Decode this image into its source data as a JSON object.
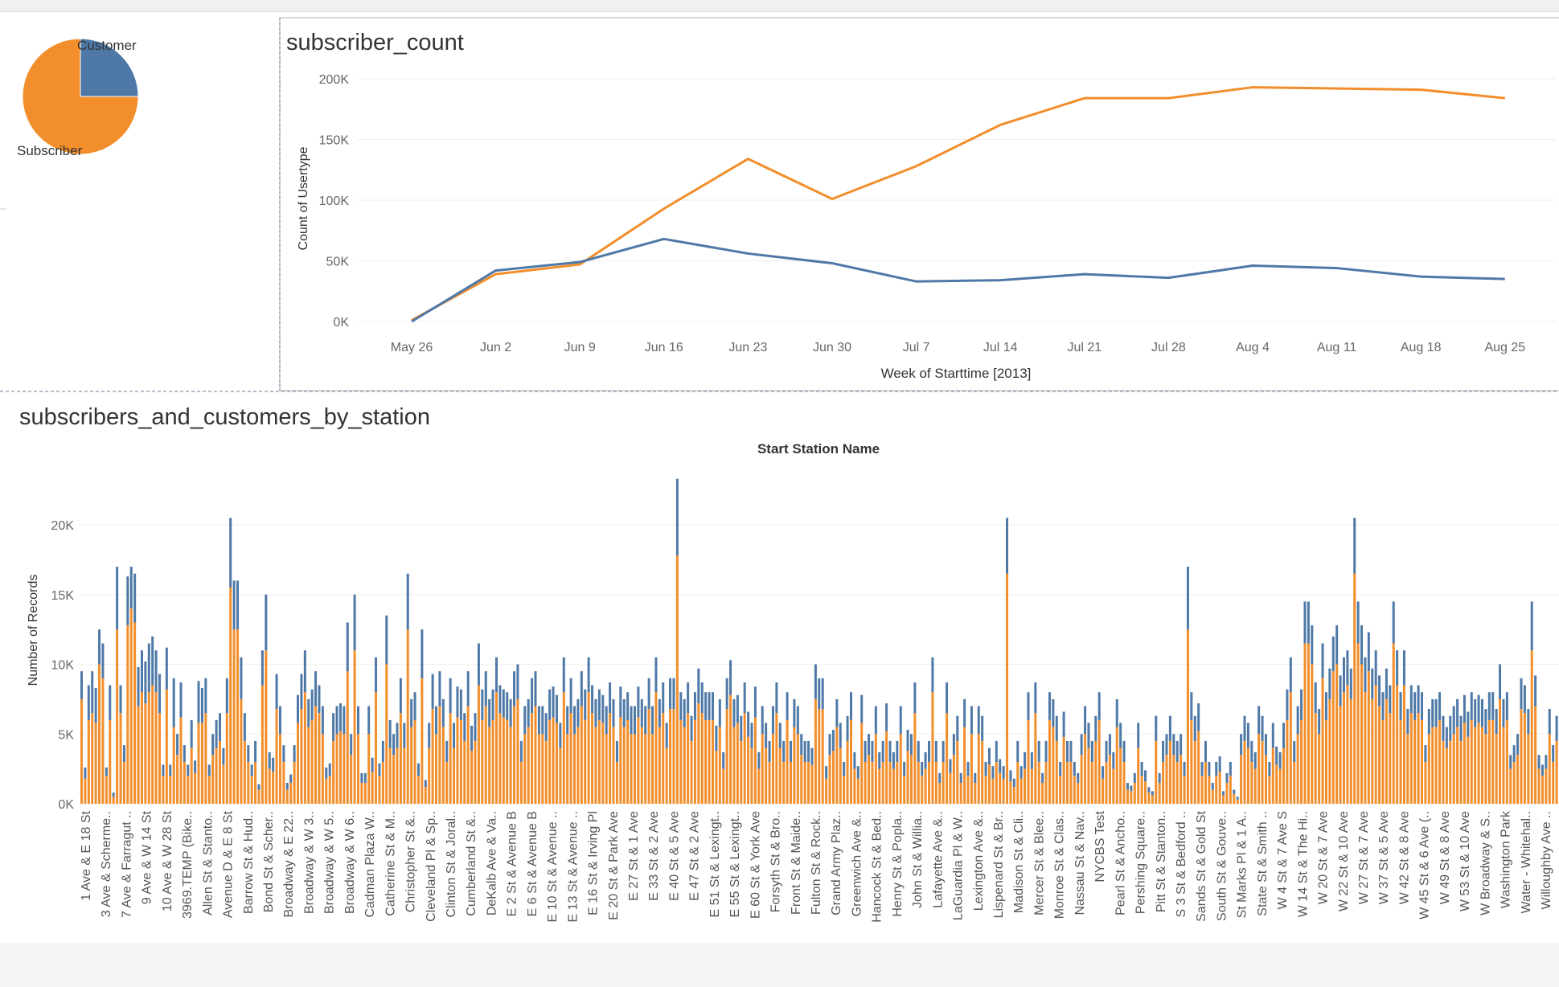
{
  "pie": {
    "slices": [
      {
        "label": "Customer",
        "fraction": 0.25,
        "color": "#4e79a7"
      },
      {
        "label": "Subscriber",
        "fraction": 0.75,
        "color": "#f28e2b"
      }
    ]
  },
  "line_chart": {
    "title": "subscriber_count",
    "xlabel": "Week of Starttime [2013]",
    "ylabel": "Count of Usertype",
    "categories": [
      "May 26",
      "Jun 2",
      "Jun 9",
      "Jun 16",
      "Jun 23",
      "Jun 30",
      "Jul 7",
      "Jul 14",
      "Jul 21",
      "Jul 28",
      "Aug 4",
      "Aug 11",
      "Aug 18",
      "Aug 25"
    ],
    "yticks": [
      "0K",
      "50K",
      "100K",
      "150K",
      "200K"
    ],
    "ylim": [
      0,
      200000
    ],
    "series": [
      {
        "color": "#f28e2b",
        "values": [
          1000,
          39000,
          47000,
          93000,
          134000,
          101000,
          128000,
          162000,
          184000,
          184000,
          193000,
          192000,
          191000,
          184000
        ]
      },
      {
        "color": "#4e79a7",
        "values": [
          0,
          42000,
          49000,
          68000,
          56000,
          48000,
          33000,
          34000,
          39000,
          36000,
          46000,
          44000,
          37000,
          35000
        ]
      }
    ]
  },
  "bar_chart": {
    "title": "subscribers_and_customers_by_station",
    "column_header": "Start Station Name",
    "ylabel": "Number of Records",
    "yticks": [
      "0K",
      "5K",
      "10K",
      "15K",
      "20K"
    ],
    "ylim": [
      0,
      25000
    ],
    "colors": {
      "subscriber": "#f28e2b",
      "customer": "#4e79a7"
    },
    "labels": [
      "1 Ave & E 18 St",
      "3 Ave & Scherme..",
      "7 Ave & Farragut ..",
      "9 Ave & W 14 St",
      "10 Ave & W 28 St",
      "3969.TEMP (Bike..",
      "Allen St & Stanto..",
      "Avenue D & E 8 St",
      "Barrow St & Hud..",
      "Bond St & Scher..",
      "Broadway & E 22..",
      "Broadway & W 3..",
      "Broadway & W 5..",
      "Broadway & W 6..",
      "Cadman Plaza W..",
      "Catherine St & M..",
      "Christopher St &..",
      "Cleveland Pl & Sp..",
      "Clinton St & Joral..",
      "Cumberland St &..",
      "DeKalb Ave & Va..",
      "E 2 St & Avenue B",
      "E 6 St & Avenue B",
      "E 10 St & Avenue ..",
      "E 13 St & Avenue ..",
      "E 16 St & Irving Pl",
      "E 20 St & Park Ave",
      "E 27 St & 1 Ave",
      "E 33 St & 2 Ave",
      "E 40 St & 5 Ave",
      "E 47 St & 2 Ave",
      "E 51 St & Lexingt..",
      "E 55 St & Lexingt..",
      "E 60 St & York Ave",
      "Forsyth St & Bro..",
      "Front St & Maide..",
      "Fulton St & Rock..",
      "Grand Army Plaz..",
      "Greenwich Ave &..",
      "Hancock St & Bed..",
      "Henry St & Popla..",
      "John St & Willia..",
      "Lafayette Ave &..",
      "LaGuardia Pl & W..",
      "Lexington Ave &..",
      "Lispenard St & Br..",
      "Madison St & Cli..",
      "Mercer St & Blee..",
      "Monroe St & Clas..",
      "Nassau St & Nav..",
      "NYCBS Test",
      "Pearl St & Ancho..",
      "Pershing Square..",
      "Pitt St & Stanton..",
      "S 3 St & Bedford ..",
      "Sands St & Gold St",
      "South St & Gouve..",
      "St Marks Pl & 1 A..",
      "State St & Smith ..",
      "W 4 St & 7 Ave S",
      "W 14 St & The Hi..",
      "W 20 St & 7 Ave",
      "W 22 St & 10 Ave",
      "W 27 St & 7 Ave",
      "W 37 St & 5 Ave",
      "W 42 St & 8 Ave",
      "W 45 St & 6 Ave (..",
      "W 49 St & 8 Ave",
      "W 53 St & 10 Ave",
      "W Broadway & S..",
      "Washington Park",
      "Water - Whitehal..",
      "Willoughby Ave .."
    ],
    "subscriber": [
      7500,
      1800,
      6000,
      6500,
      5800,
      10000,
      9000,
      2000,
      6000,
      500,
      12500,
      6500,
      3000,
      12800,
      14000,
      13000,
      7000,
      8000,
      7200,
      8000,
      8500,
      8000,
      6500,
      2000,
      8200,
      2000,
      5500,
      3500,
      6200,
      3000,
      2000,
      4000,
      2200,
      5800,
      5800,
      6500,
      2000,
      3500,
      4000,
      4500,
      2800,
      6500,
      15500,
      12500,
      12500,
      7500,
      4500,
      3000,
      2000,
      3000,
      1000,
      8500,
      11000,
      2500,
      2300,
      6800,
      5000,
      3000,
      1000,
      1500,
      3000,
      5800,
      6800,
      8000,
      5500,
      6000,
      7000,
      6500,
      5000,
      1800,
      2000,
      4500,
      5000,
      5200,
      5000,
      9500,
      3500,
      11000,
      5000,
      1500,
      1500,
      5000,
      2300,
      8000,
      2000,
      3000,
      10000,
      4000,
      3500,
      4000,
      6500,
      4000,
      12500,
      5500,
      6000,
      2000,
      9000,
      1200,
      4000,
      6800,
      5000,
      7000,
      5500,
      3000,
      6500,
      4000,
      6200,
      6000,
      4500,
      7000,
      3800,
      4500,
      8500,
      6000,
      7000,
      5500,
      6000,
      8000,
      6500,
      6200,
      6000,
      5500,
      7000,
      7500,
      3000,
      5000,
      5500,
      6500,
      7000,
      5000,
      5000,
      4500,
      6000,
      6200,
      5800,
      4000,
      8000,
      5000,
      6500,
      5000,
      5500,
      7000,
      6000,
      8000,
      6500,
      5500,
      6000,
      5800,
      5000,
      6500,
      5500,
      3000,
      6200,
      5500,
      6000,
      5000,
      5000,
      6200,
      5500,
      5000,
      6800,
      5000,
      8000,
      5500,
      6500,
      4000,
      6800,
      6800,
      17800,
      6000,
      5500,
      6500,
      4500,
      6000,
      7200,
      6500,
      6000,
      6000,
      6000,
      3800,
      5500,
      2500,
      6800,
      7800,
      5500,
      5800,
      4500,
      6500,
      4800,
      4000,
      6200,
      2500,
      5000,
      4000,
      3000,
      5000,
      6500,
      4000,
      3000,
      6000,
      3000,
      5500,
      5000,
      3500,
      3000,
      3000,
      2800,
      7500,
      6800,
      6800,
      1800,
      3500,
      3800,
      5500,
      4000,
      2000,
      4500,
      6000,
      2500,
      1800,
      5800,
      3000,
      3500,
      3000,
      5000,
      2500,
      3000,
      5200,
      3000,
      2500,
      3000,
      5000,
      2000,
      3800,
      3500,
      6500,
      3000,
      2000,
      2500,
      3000,
      8000,
      3000,
      1500,
      3000,
      6500,
      2200,
      3500,
      4500,
      1500,
      5500,
      2000,
      5000,
      1500,
      5000,
      4500,
      2000,
      2800,
      1800,
      3000,
      2200,
      1800,
      16500,
      1600,
      1200,
      3000,
      1800,
      2500,
      6000,
      2500,
      6500,
      3000,
      1500,
      3000,
      6000,
      5500,
      4500,
      2000,
      4800,
      3000,
      3000,
      2000,
      1500,
      3500,
      5000,
      4000,
      3000,
      4500,
      6000,
      1800,
      3000,
      3500,
      2500,
      5500,
      4000,
      3000,
      1000,
      900,
      1500,
      4000,
      2000,
      1600,
      800,
      600,
      4500,
      1500,
      3000,
      3500,
      4500,
      3500,
      3000,
      3500,
      2000,
      12500,
      6000,
      4500,
      5200,
      2000,
      3000,
      2000,
      1000,
      2000,
      2300,
      600,
      1500,
      2000,
      700,
      300,
      3500,
      4500,
      4000,
      3000,
      2500,
      5000,
      4500,
      3500,
      2000,
      4000,
      2800,
      2500,
      4000,
      6000,
      8000,
      3000,
      5000,
      6000,
      11500,
      11500,
      10000,
      6500,
      5000,
      9000,
      6000,
      7500,
      9500,
      10000,
      7000,
      8000,
      8500,
      7500,
      16500,
      11500,
      10000,
      8000,
      9500,
      7500,
      8500,
      7000,
      6000,
      7500,
      6500,
      11500,
      8500,
      6000,
      8500,
      5000,
      6500,
      6000,
      6500,
      6000,
      3000,
      5000,
      5500,
      5500,
      6000,
      4500,
      4000,
      4500,
      5000,
      5500,
      4500,
      5800,
      4800,
      6000,
      5500,
      5800,
      5500,
      5000,
      6000,
      6000,
      5000,
      7500,
      5500,
      6000,
      2500,
      3000,
      3500,
      6800,
      6500,
      5000,
      11000,
      7000,
      2500,
      2000,
      2500,
      5000,
      3000,
      4500
    ],
    "customer": [
      2000,
      800,
      2500,
      3000,
      2500,
      2500,
      2500,
      600,
      2500,
      300,
      4500,
      2000,
      1200,
      3500,
      3000,
      3500,
      2800,
      3000,
      3000,
      3500,
      3500,
      3000,
      2800,
      800,
      3000,
      800,
      3500,
      1500,
      2500,
      1200,
      800,
      2000,
      900,
      3000,
      2500,
      2500,
      800,
      1500,
      2000,
      2000,
      1200,
      2500,
      5000,
      3500,
      3500,
      3000,
      2000,
      1200,
      800,
      1500,
      400,
      2500,
      4000,
      1200,
      1000,
      2500,
      2000,
      1200,
      500,
      600,
      1200,
      2000,
      2500,
      3000,
      2000,
      2200,
      2500,
      2000,
      2000,
      800,
      900,
      2000,
      2000,
      2000,
      2000,
      3500,
      1500,
      4000,
      2000,
      700,
      700,
      2000,
      1000,
      2500,
      900,
      1500,
      3500,
      2000,
      1500,
      1800,
      2500,
      1800,
      4000,
      2000,
      2000,
      900,
      3500,
      500,
      1800,
      2500,
      2000,
      2500,
      2000,
      1500,
      2500,
      1800,
      2200,
      2200,
      2000,
      2500,
      1800,
      2000,
      3000,
      2200,
      2500,
      2000,
      2200,
      2500,
      2000,
      2000,
      2000,
      2000,
      2500,
      2500,
      1500,
      2000,
      2000,
      2500,
      2500,
      2000,
      2000,
      2000,
      2200,
      2200,
      2000,
      1800,
      2500,
      2000,
      2500,
      2000,
      2000,
      2500,
      2200,
      2500,
      2000,
      2000,
      2200,
      2000,
      2000,
      2200,
      2000,
      1500,
      2200,
      2000,
      2000,
      2000,
      2000,
      2200,
      2000,
      2000,
      2200,
      2000,
      2500,
      2000,
      2200,
      1800,
      2200,
      2200,
      5500,
      2000,
      2000,
      2200,
      1800,
      2000,
      2500,
      2200,
      2000,
      2000,
      2000,
      1800,
      2000,
      1200,
      2200,
      2500,
      2000,
      2000,
      1800,
      2200,
      1800,
      1800,
      2200,
      1200,
      2000,
      1800,
      1500,
      2000,
      2200,
      1800,
      1500,
      2000,
      1500,
      2000,
      2000,
      1500,
      1500,
      1500,
      1200,
      2500,
      2200,
      2200,
      900,
      1500,
      1500,
      2000,
      1800,
      1000,
      1800,
      2000,
      1200,
      900,
      2000,
      1500,
      1500,
      1500,
      2000,
      1200,
      1500,
      2000,
      1500,
      1200,
      1500,
      2000,
      1000,
      1500,
      1500,
      2200,
      1500,
      1000,
      1200,
      1500,
      2500,
      1500,
      700,
      1500,
      2200,
      1000,
      1500,
      1800,
      700,
      2000,
      1000,
      2000,
      700,
      2000,
      1800,
      1000,
      1200,
      900,
      1500,
      1000,
      900,
      4000,
      800,
      600,
      1500,
      900,
      1200,
      2000,
      1200,
      2200,
      1500,
      700,
      1500,
      2000,
      2000,
      1800,
      1000,
      1800,
      1500,
      1500,
      1000,
      700,
      1500,
      2000,
      1800,
      1500,
      1800,
      2000,
      900,
      1500,
      1500,
      1200,
      2000,
      1800,
      1500,
      500,
      400,
      700,
      1800,
      1000,
      800,
      400,
      300,
      1800,
      700,
      1500,
      1500,
      1800,
      1500,
      1500,
      1500,
      1000,
      4500,
      2000,
      1800,
      2000,
      1000,
      1500,
      1000,
      500,
      1000,
      1100,
      300,
      700,
      1000,
      300,
      200,
      1500,
      1800,
      1800,
      1500,
      1200,
      2000,
      1800,
      1500,
      1000,
      1800,
      1300,
      1200,
      1800,
      2200,
      2500,
      1500,
      2000,
      2200,
      3000,
      3000,
      2800,
      2200,
      1800,
      2500,
      2000,
      2200,
      2500,
      2800,
      2200,
      2500,
      2500,
      2200,
      4000,
      3000,
      2800,
      2500,
      2800,
      2200,
      2500,
      2200,
      2000,
      2200,
      2000,
      3000,
      2500,
      2000,
      2500,
      1800,
      2000,
      2000,
      2000,
      2000,
      1200,
      1800,
      2000,
      2000,
      2000,
      1800,
      1500,
      1800,
      2000,
      2000,
      1800,
      2000,
      1800,
      2000,
      2000,
      2000,
      2000,
      1800,
      2000,
      2000,
      1800,
      2500,
      2000,
      2000,
      1000,
      1200,
      1500,
      2200,
      2000,
      1800,
      3500,
      2200,
      1000,
      800,
      1000,
      1800,
      1200,
      1800
    ]
  }
}
